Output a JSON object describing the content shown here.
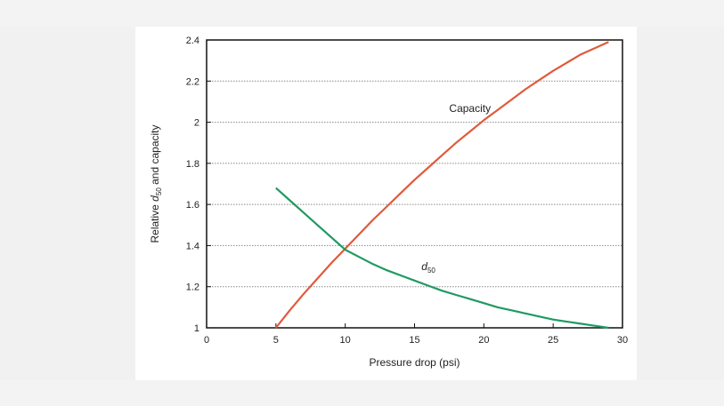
{
  "chart_data": {
    "type": "line",
    "title": "",
    "xlabel": "Pressure drop (psi)",
    "ylabel": "Relative d50 and capacity",
    "ylabel_parts": [
      "Relative ",
      "d",
      "50",
      " and capacity"
    ],
    "xlim": [
      0,
      30
    ],
    "ylim": [
      1,
      2.4
    ],
    "xticks": [
      "0",
      "5",
      "10",
      "15",
      "20",
      "25",
      "30"
    ],
    "yticks": [
      "1",
      "1.2",
      "1.4",
      "1.6",
      "1.8",
      "2",
      "2.2",
      "2.4"
    ],
    "grid": "horizontal dotted",
    "series": [
      {
        "name": "Capacity",
        "color": "#e05a3c",
        "x": [
          5,
          6,
          7,
          8,
          9,
          10,
          11,
          12,
          13,
          14,
          15,
          16,
          17,
          18,
          19,
          20,
          21,
          22,
          23,
          24,
          25,
          26,
          27,
          28,
          29
        ],
        "y": [
          1.0,
          1.085,
          1.165,
          1.24,
          1.315,
          1.385,
          1.455,
          1.525,
          1.59,
          1.655,
          1.72,
          1.78,
          1.84,
          1.9,
          1.955,
          2.01,
          2.06,
          2.11,
          2.16,
          2.205,
          2.25,
          2.29,
          2.33,
          2.36,
          2.39
        ]
      },
      {
        "name": "d50",
        "color": "#1f9a62",
        "x": [
          5,
          6,
          7,
          8,
          9,
          10,
          11,
          12,
          13,
          14,
          15,
          16,
          17,
          18,
          19,
          20,
          21,
          22,
          23,
          24,
          25,
          26,
          27,
          28,
          29
        ],
        "y": [
          1.68,
          1.62,
          1.56,
          1.5,
          1.44,
          1.38,
          1.345,
          1.31,
          1.28,
          1.255,
          1.23,
          1.205,
          1.18,
          1.16,
          1.14,
          1.12,
          1.1,
          1.085,
          1.07,
          1.055,
          1.04,
          1.03,
          1.02,
          1.01,
          1.0
        ]
      }
    ],
    "annotations": [
      {
        "label": "Capacity",
        "x": 17.5,
        "y": 2.05
      },
      {
        "label_base": "d",
        "label_sub": "50",
        "x": 15.5,
        "y": 1.28
      }
    ]
  }
}
